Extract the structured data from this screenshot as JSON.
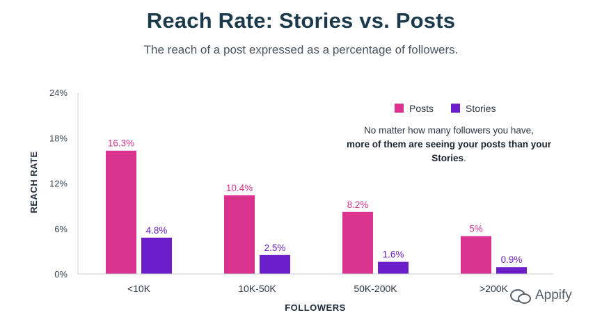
{
  "chart_data": {
    "type": "bar",
    "title": "Reach Rate: Stories vs. Posts",
    "subtitle": "The reach of a post expressed as a percentage of followers.",
    "xlabel": "FOLLOWERS",
    "ylabel": "REACH RATE",
    "categories": [
      "<10K",
      "10K-50K",
      "50K-200K",
      ">200K"
    ],
    "series": [
      {
        "name": "Posts",
        "color": "#d9338f",
        "values": [
          16.3,
          10.4,
          8.2,
          5
        ],
        "labels": [
          "16.3%",
          "10.4%",
          "8.2%",
          "5%"
        ]
      },
      {
        "name": "Stories",
        "color": "#6b1fc9",
        "values": [
          4.8,
          2.5,
          1.6,
          0.9
        ],
        "labels": [
          "4.8%",
          "2.5%",
          "1.6%",
          "0.9%"
        ]
      }
    ],
    "ylim": [
      0,
      24
    ],
    "yticks": [
      0,
      6,
      12,
      18,
      24
    ],
    "ytick_labels": [
      "0%",
      "6%",
      "12%",
      "18%",
      "24%"
    ],
    "grid": false,
    "legend_position": "top-right",
    "annotation": {
      "line1": "No matter how many followers you have,",
      "bold": "more of them are seeing your posts than your Stories",
      "end": "."
    }
  },
  "watermark": {
    "text": "Appify",
    "icon": "wechat-icon"
  }
}
